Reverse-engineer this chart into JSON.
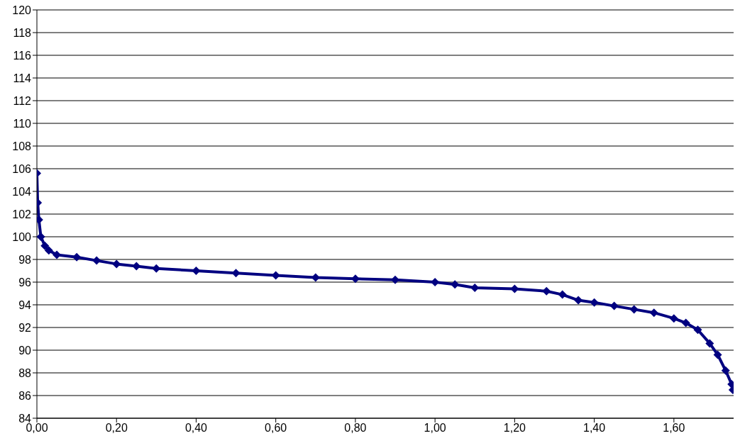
{
  "chart_data": {
    "type": "line",
    "x": [
      0,
      0.002,
      0.005,
      0.01,
      0.02,
      0.03,
      0.05,
      0.1,
      0.15,
      0.2,
      0.25,
      0.3,
      0.4,
      0.5,
      0.6,
      0.7,
      0.8,
      0.9,
      1.0,
      1.05,
      1.1,
      1.2,
      1.28,
      1.32,
      1.36,
      1.4,
      1.45,
      1.5,
      1.55,
      1.6,
      1.63,
      1.66,
      1.69,
      1.71,
      1.73,
      1.745,
      1.748
    ],
    "series": [
      {
        "color": "#000080",
        "values": [
          105.6,
          103,
          101.5,
          100,
          99.2,
          98.8,
          98.4,
          98.2,
          97.9,
          97.6,
          97.4,
          97.2,
          97.0,
          96.8,
          96.6,
          96.4,
          96.3,
          96.2,
          96.0,
          95.8,
          95.5,
          95.4,
          95.2,
          94.9,
          94.4,
          94.2,
          93.9,
          93.6,
          93.3,
          92.8,
          92.4,
          91.8,
          90.6,
          89.6,
          88.2,
          87.0,
          86.5
        ]
      }
    ],
    "xlim": [
      0,
      1.75
    ],
    "xticks": [
      {
        "value": 0,
        "label": "0,00"
      },
      {
        "value": 0.2,
        "label": "0,20"
      },
      {
        "value": 0.4,
        "label": "0,40"
      },
      {
        "value": 0.6,
        "label": "0,60"
      },
      {
        "value": 0.8,
        "label": "0,80"
      },
      {
        "value": 1.0,
        "label": "1,00"
      },
      {
        "value": 1.2,
        "label": "1,20"
      },
      {
        "value": 1.4,
        "label": "1,40"
      },
      {
        "value": 1.6,
        "label": "1,60"
      }
    ],
    "ylim": [
      84,
      120
    ],
    "yticks": [
      84,
      86,
      88,
      90,
      92,
      94,
      96,
      98,
      100,
      102,
      104,
      106,
      108,
      110,
      112,
      114,
      116,
      118,
      120
    ],
    "grid": "y",
    "marker": "diamond",
    "line_style": "solid",
    "legend": false
  }
}
